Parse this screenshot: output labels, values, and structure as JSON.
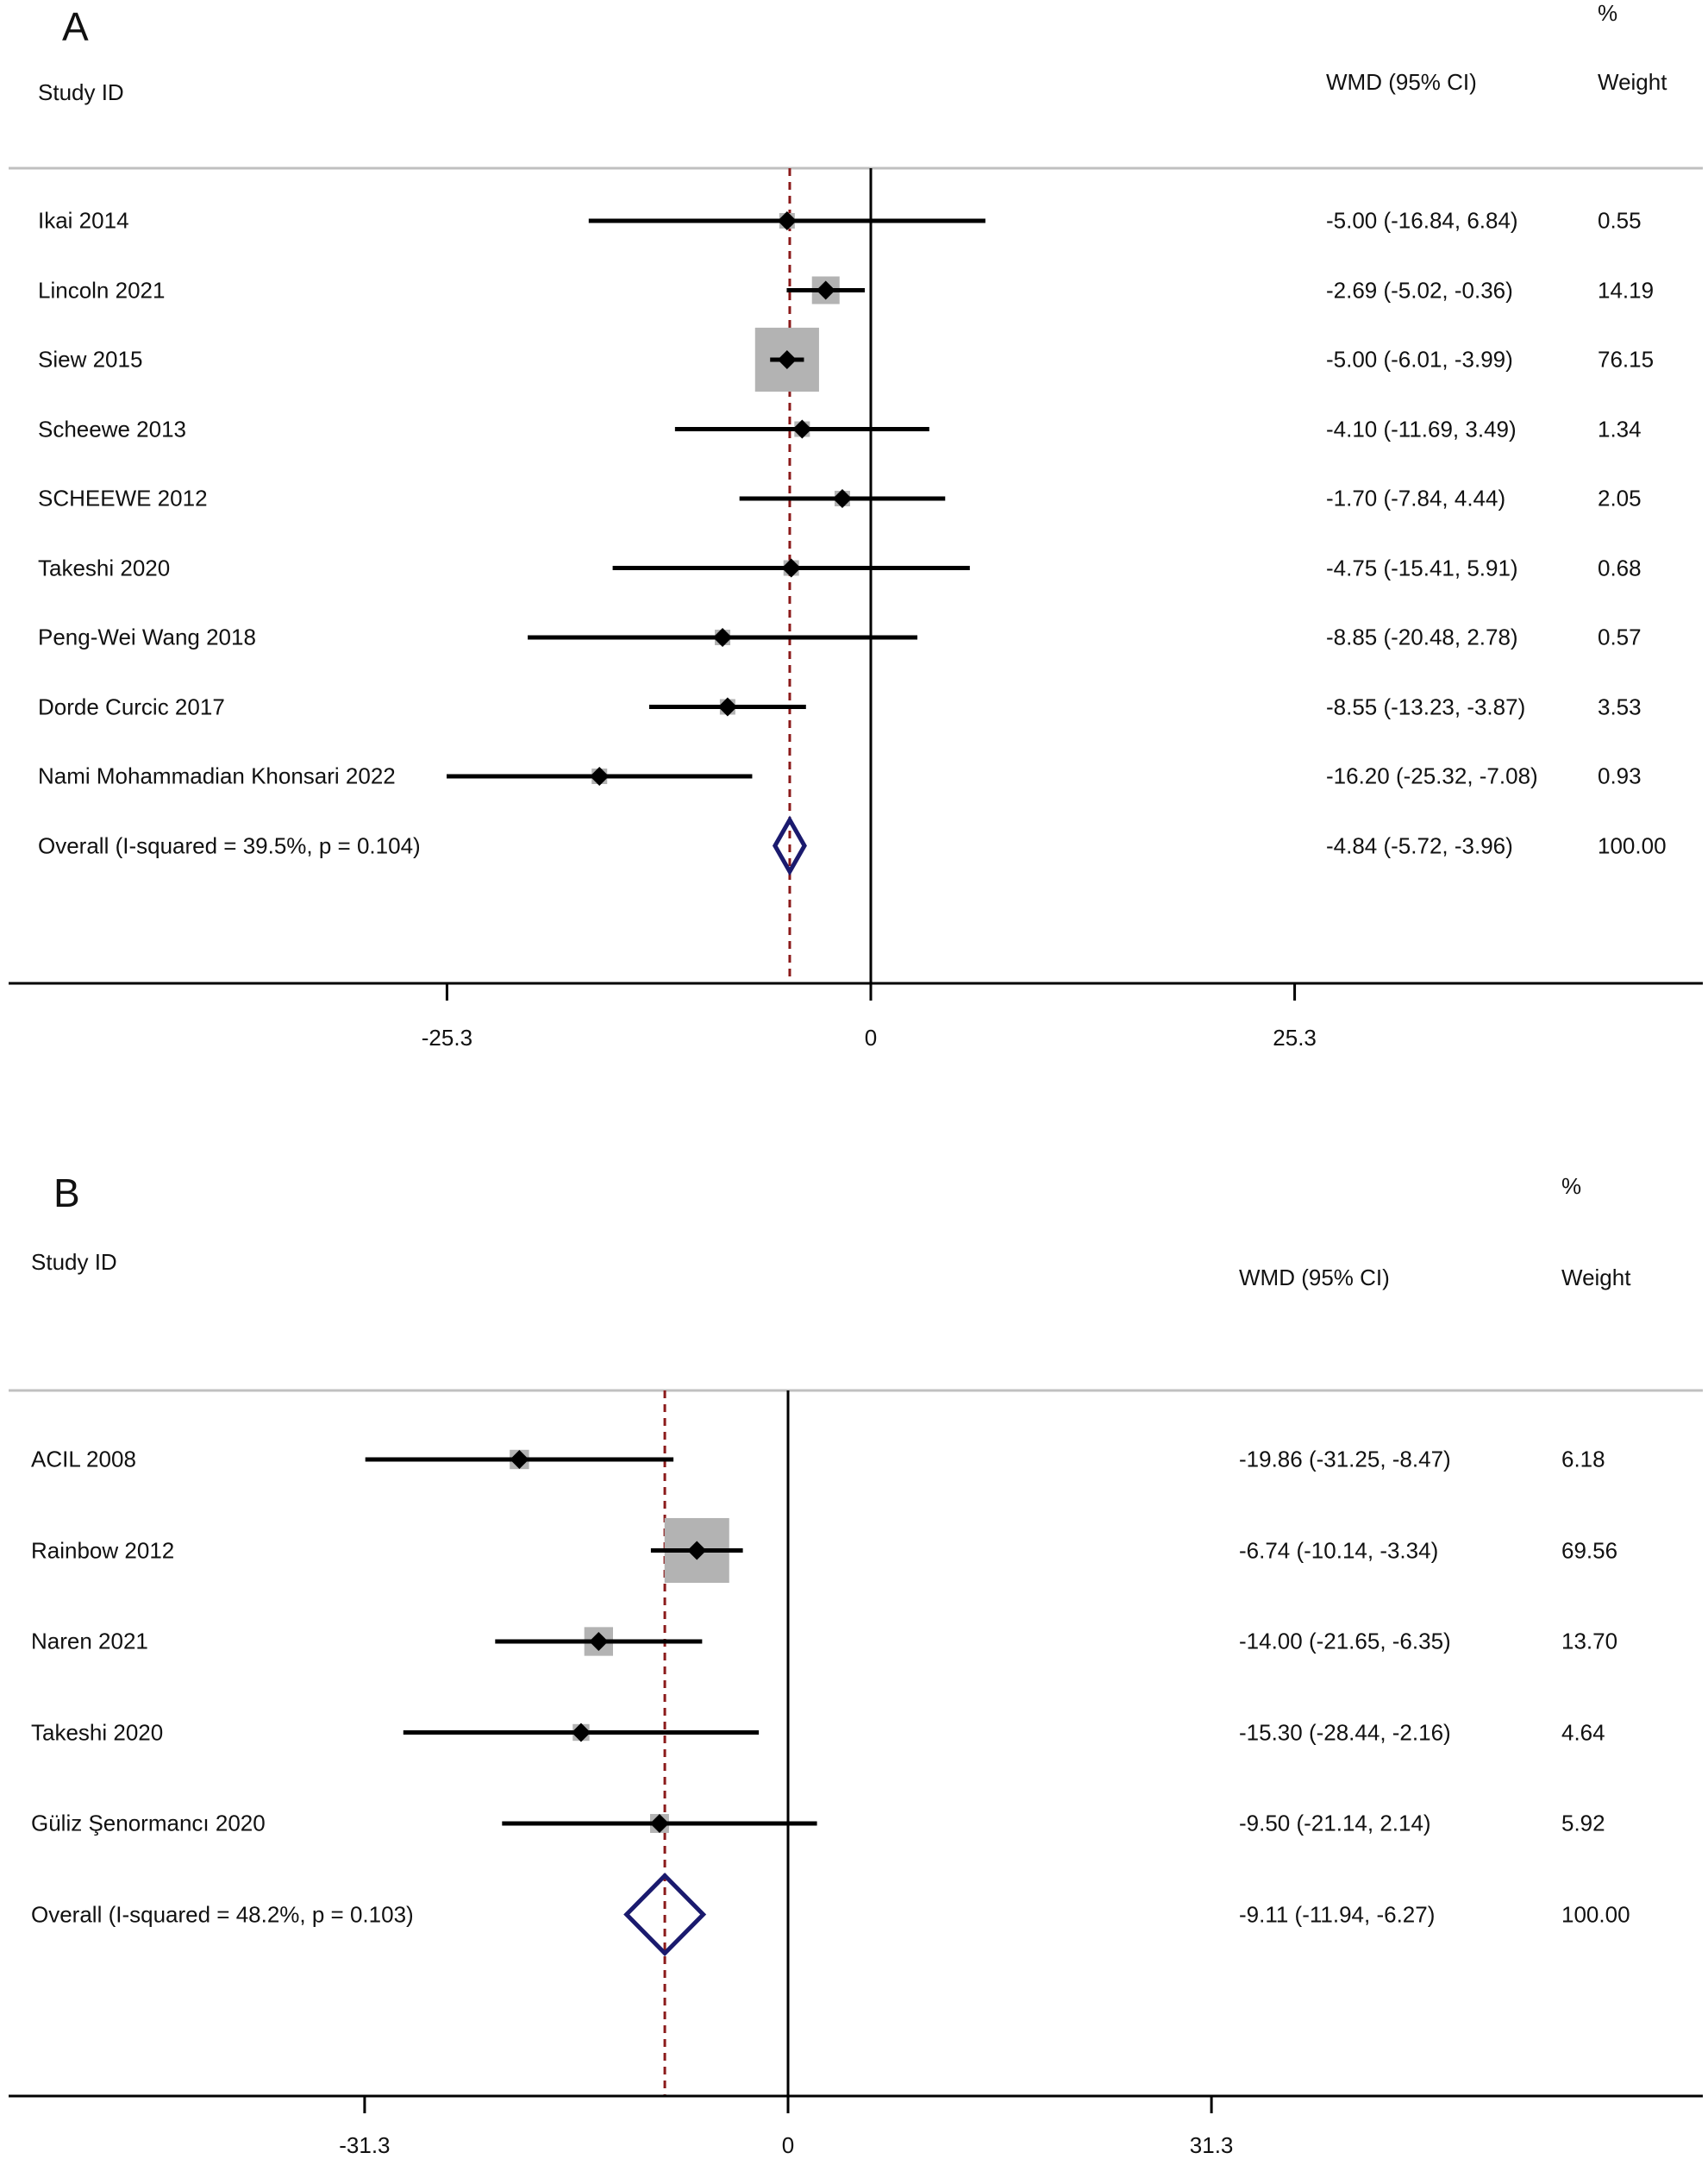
{
  "chart_data": [
    {
      "type": "forest",
      "panel_label": "A",
      "headers": {
        "study": "Study  ID",
        "effect": "WMD (95% CI)",
        "percent": "%",
        "weight": "Weight"
      },
      "xticks": [
        -25.3,
        0,
        25.3
      ],
      "xtick_labels": [
        "-25.3",
        "0",
        "25.3"
      ],
      "xlim": [
        -50.6,
        50.6
      ],
      "null_line": 0,
      "pooled_estimate_line": -4.84,
      "studies": [
        {
          "name": "Ikai 2014",
          "est": -5.0,
          "lo": -16.84,
          "hi": 6.84,
          "ci_text": "-5.00 (-16.84, 6.84)",
          "weight": 0.55,
          "weight_text": "0.55"
        },
        {
          "name": "Lincoln 2021",
          "est": -2.69,
          "lo": -5.02,
          "hi": -0.36,
          "ci_text": "-2.69 (-5.02, -0.36)",
          "weight": 14.19,
          "weight_text": "14.19"
        },
        {
          "name": "Siew 2015",
          "est": -5.0,
          "lo": -6.01,
          "hi": -3.99,
          "ci_text": "-5.00 (-6.01, -3.99)",
          "weight": 76.15,
          "weight_text": "76.15"
        },
        {
          "name": "Scheewe 2013",
          "est": -4.1,
          "lo": -11.69,
          "hi": 3.49,
          "ci_text": "-4.10 (-11.69, 3.49)",
          "weight": 1.34,
          "weight_text": "1.34"
        },
        {
          "name": "SCHEEWE 2012",
          "est": -1.7,
          "lo": -7.84,
          "hi": 4.44,
          "ci_text": "-1.70 (-7.84, 4.44)",
          "weight": 2.05,
          "weight_text": "2.05"
        },
        {
          "name": "Takeshi 2020",
          "est": -4.75,
          "lo": -15.41,
          "hi": 5.91,
          "ci_text": "-4.75 (-15.41, 5.91)",
          "weight": 0.68,
          "weight_text": "0.68"
        },
        {
          "name": "Peng-Wei Wang 2018",
          "est": -8.85,
          "lo": -20.48,
          "hi": 2.78,
          "ci_text": "-8.85 (-20.48, 2.78)",
          "weight": 0.57,
          "weight_text": "0.57"
        },
        {
          "name": "Dorde Curcic 2017",
          "est": -8.55,
          "lo": -13.23,
          "hi": -3.87,
          "ci_text": "-8.55 (-13.23, -3.87)",
          "weight": 3.53,
          "weight_text": "3.53"
        },
        {
          "name": "Nami Mohammadian Khonsari 2022",
          "est": -16.2,
          "lo": -25.32,
          "hi": -7.08,
          "ci_text": "-16.20 (-25.32, -7.08)",
          "weight": 0.93,
          "weight_text": "0.93"
        }
      ],
      "overall": {
        "name": "Overall  (I-squared = 39.5%, p = 0.104)",
        "est": -4.84,
        "lo": -5.72,
        "hi": -3.96,
        "ci_text": "-4.84 (-5.72, -3.96)",
        "weight_text": "100.00"
      }
    },
    {
      "type": "forest",
      "panel_label": "B",
      "headers": {
        "study": "Study  ID",
        "effect": "WMD (95% CI)",
        "percent": "%",
        "weight": "Weight"
      },
      "xticks": [
        -31.3,
        0,
        31.3
      ],
      "xtick_labels": [
        "-31.3",
        "0",
        "31.3"
      ],
      "xlim": [
        -57.9,
        67.3
      ],
      "null_line": 0,
      "pooled_estimate_line": -9.11,
      "studies": [
        {
          "name": "ACIL 2008",
          "est": -19.86,
          "lo": -31.25,
          "hi": -8.47,
          "ci_text": "-19.86 (-31.25, -8.47)",
          "weight": 6.18,
          "weight_text": "6.18"
        },
        {
          "name": "Rainbow 2012",
          "est": -6.74,
          "lo": -10.14,
          "hi": -3.34,
          "ci_text": "-6.74 (-10.14, -3.34)",
          "weight": 69.56,
          "weight_text": "69.56"
        },
        {
          "name": "Naren 2021",
          "est": -14.0,
          "lo": -21.65,
          "hi": -6.35,
          "ci_text": "-14.00 (-21.65, -6.35)",
          "weight": 13.7,
          "weight_text": "13.70"
        },
        {
          "name": "Takeshi 2020",
          "est": -15.3,
          "lo": -28.44,
          "hi": -2.16,
          "ci_text": "-15.30 (-28.44, -2.16)",
          "weight": 4.64,
          "weight_text": "4.64"
        },
        {
          "name": "Güliz Şenormancı 2020",
          "est": -9.5,
          "lo": -21.14,
          "hi": 2.14,
          "ci_text": "-9.50 (-21.14, 2.14)",
          "weight": 5.92,
          "weight_text": "5.92"
        }
      ],
      "overall": {
        "name": "Overall  (I-squared = 48.2%, p = 0.103)",
        "est": -9.11,
        "lo": -11.94,
        "hi": -6.27,
        "ci_text": "-9.11 (-11.94, -6.27)",
        "weight_text": "100.00"
      }
    }
  ],
  "colors": {
    "ci_line": "#000000",
    "point": "#000000",
    "weight_box": "#b3b3b3",
    "pooled_diamond": "#1a1a6e",
    "pooled_line": "#8b1a1a",
    "axis": "#000000",
    "separator": "#c0c0c0"
  }
}
